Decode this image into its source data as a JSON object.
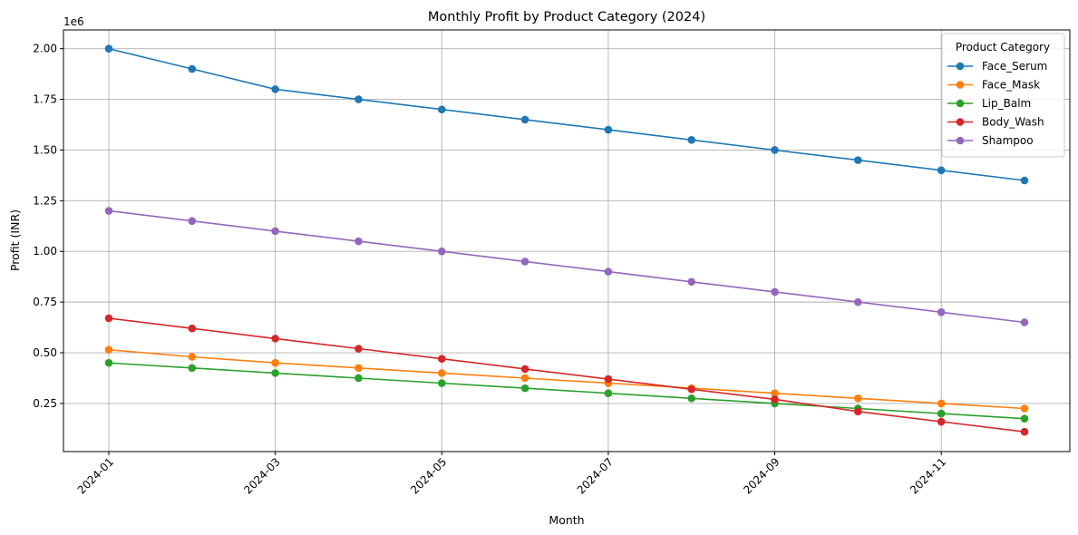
{
  "chart_data": {
    "type": "line",
    "title": "Monthly Profit by Product Category (2024)",
    "xlabel": "Month",
    "ylabel": "Profit (INR)",
    "y_offset_label": "1e6",
    "x": [
      "2024-01",
      "2024-02",
      "2024-03",
      "2024-04",
      "2024-05",
      "2024-06",
      "2024-07",
      "2024-08",
      "2024-09",
      "2024-10",
      "2024-11",
      "2024-12"
    ],
    "x_ticks": [
      "2024-01",
      "2024-03",
      "2024-05",
      "2024-07",
      "2024-09",
      "2024-11"
    ],
    "y_ticks": [
      0.25,
      0.5,
      0.75,
      1.0,
      1.25,
      1.5,
      1.75,
      2.0
    ],
    "y_tick_labels": [
      "0.25",
      "0.50",
      "0.75",
      "1.00",
      "1.25",
      "1.50",
      "1.75",
      "2.00"
    ],
    "ylim": [
      0.0125,
      2.0925
    ],
    "grid": true,
    "marker": "circle",
    "legend": {
      "title": "Product Category",
      "position": "upper right"
    },
    "series": [
      {
        "name": "Face_Serum",
        "color": "#1f77b4",
        "values": [
          2000000,
          1900000,
          1800000,
          1750000,
          1700000,
          1650000,
          1600000,
          1550000,
          1500000,
          1450000,
          1400000,
          1350000
        ]
      },
      {
        "name": "Face_Mask",
        "color": "#ff7f0e",
        "values": [
          515000,
          480000,
          450000,
          425000,
          400000,
          375000,
          350000,
          325000,
          300000,
          275000,
          250000,
          225000
        ]
      },
      {
        "name": "Lip_Balm",
        "color": "#2ca02c",
        "values": [
          450000,
          425000,
          400000,
          375000,
          350000,
          325000,
          300000,
          275000,
          250000,
          225000,
          200000,
          175000
        ]
      },
      {
        "name": "Body_Wash",
        "color": "#d62728",
        "values": [
          670000,
          620000,
          570000,
          520000,
          470000,
          420000,
          370000,
          320000,
          270000,
          210000,
          160000,
          110000
        ]
      },
      {
        "name": "Shampoo",
        "color": "#9467bd",
        "values": [
          1200000,
          1150000,
          1100000,
          1050000,
          1000000,
          950000,
          900000,
          850000,
          800000,
          750000,
          700000,
          650000
        ]
      }
    ]
  }
}
